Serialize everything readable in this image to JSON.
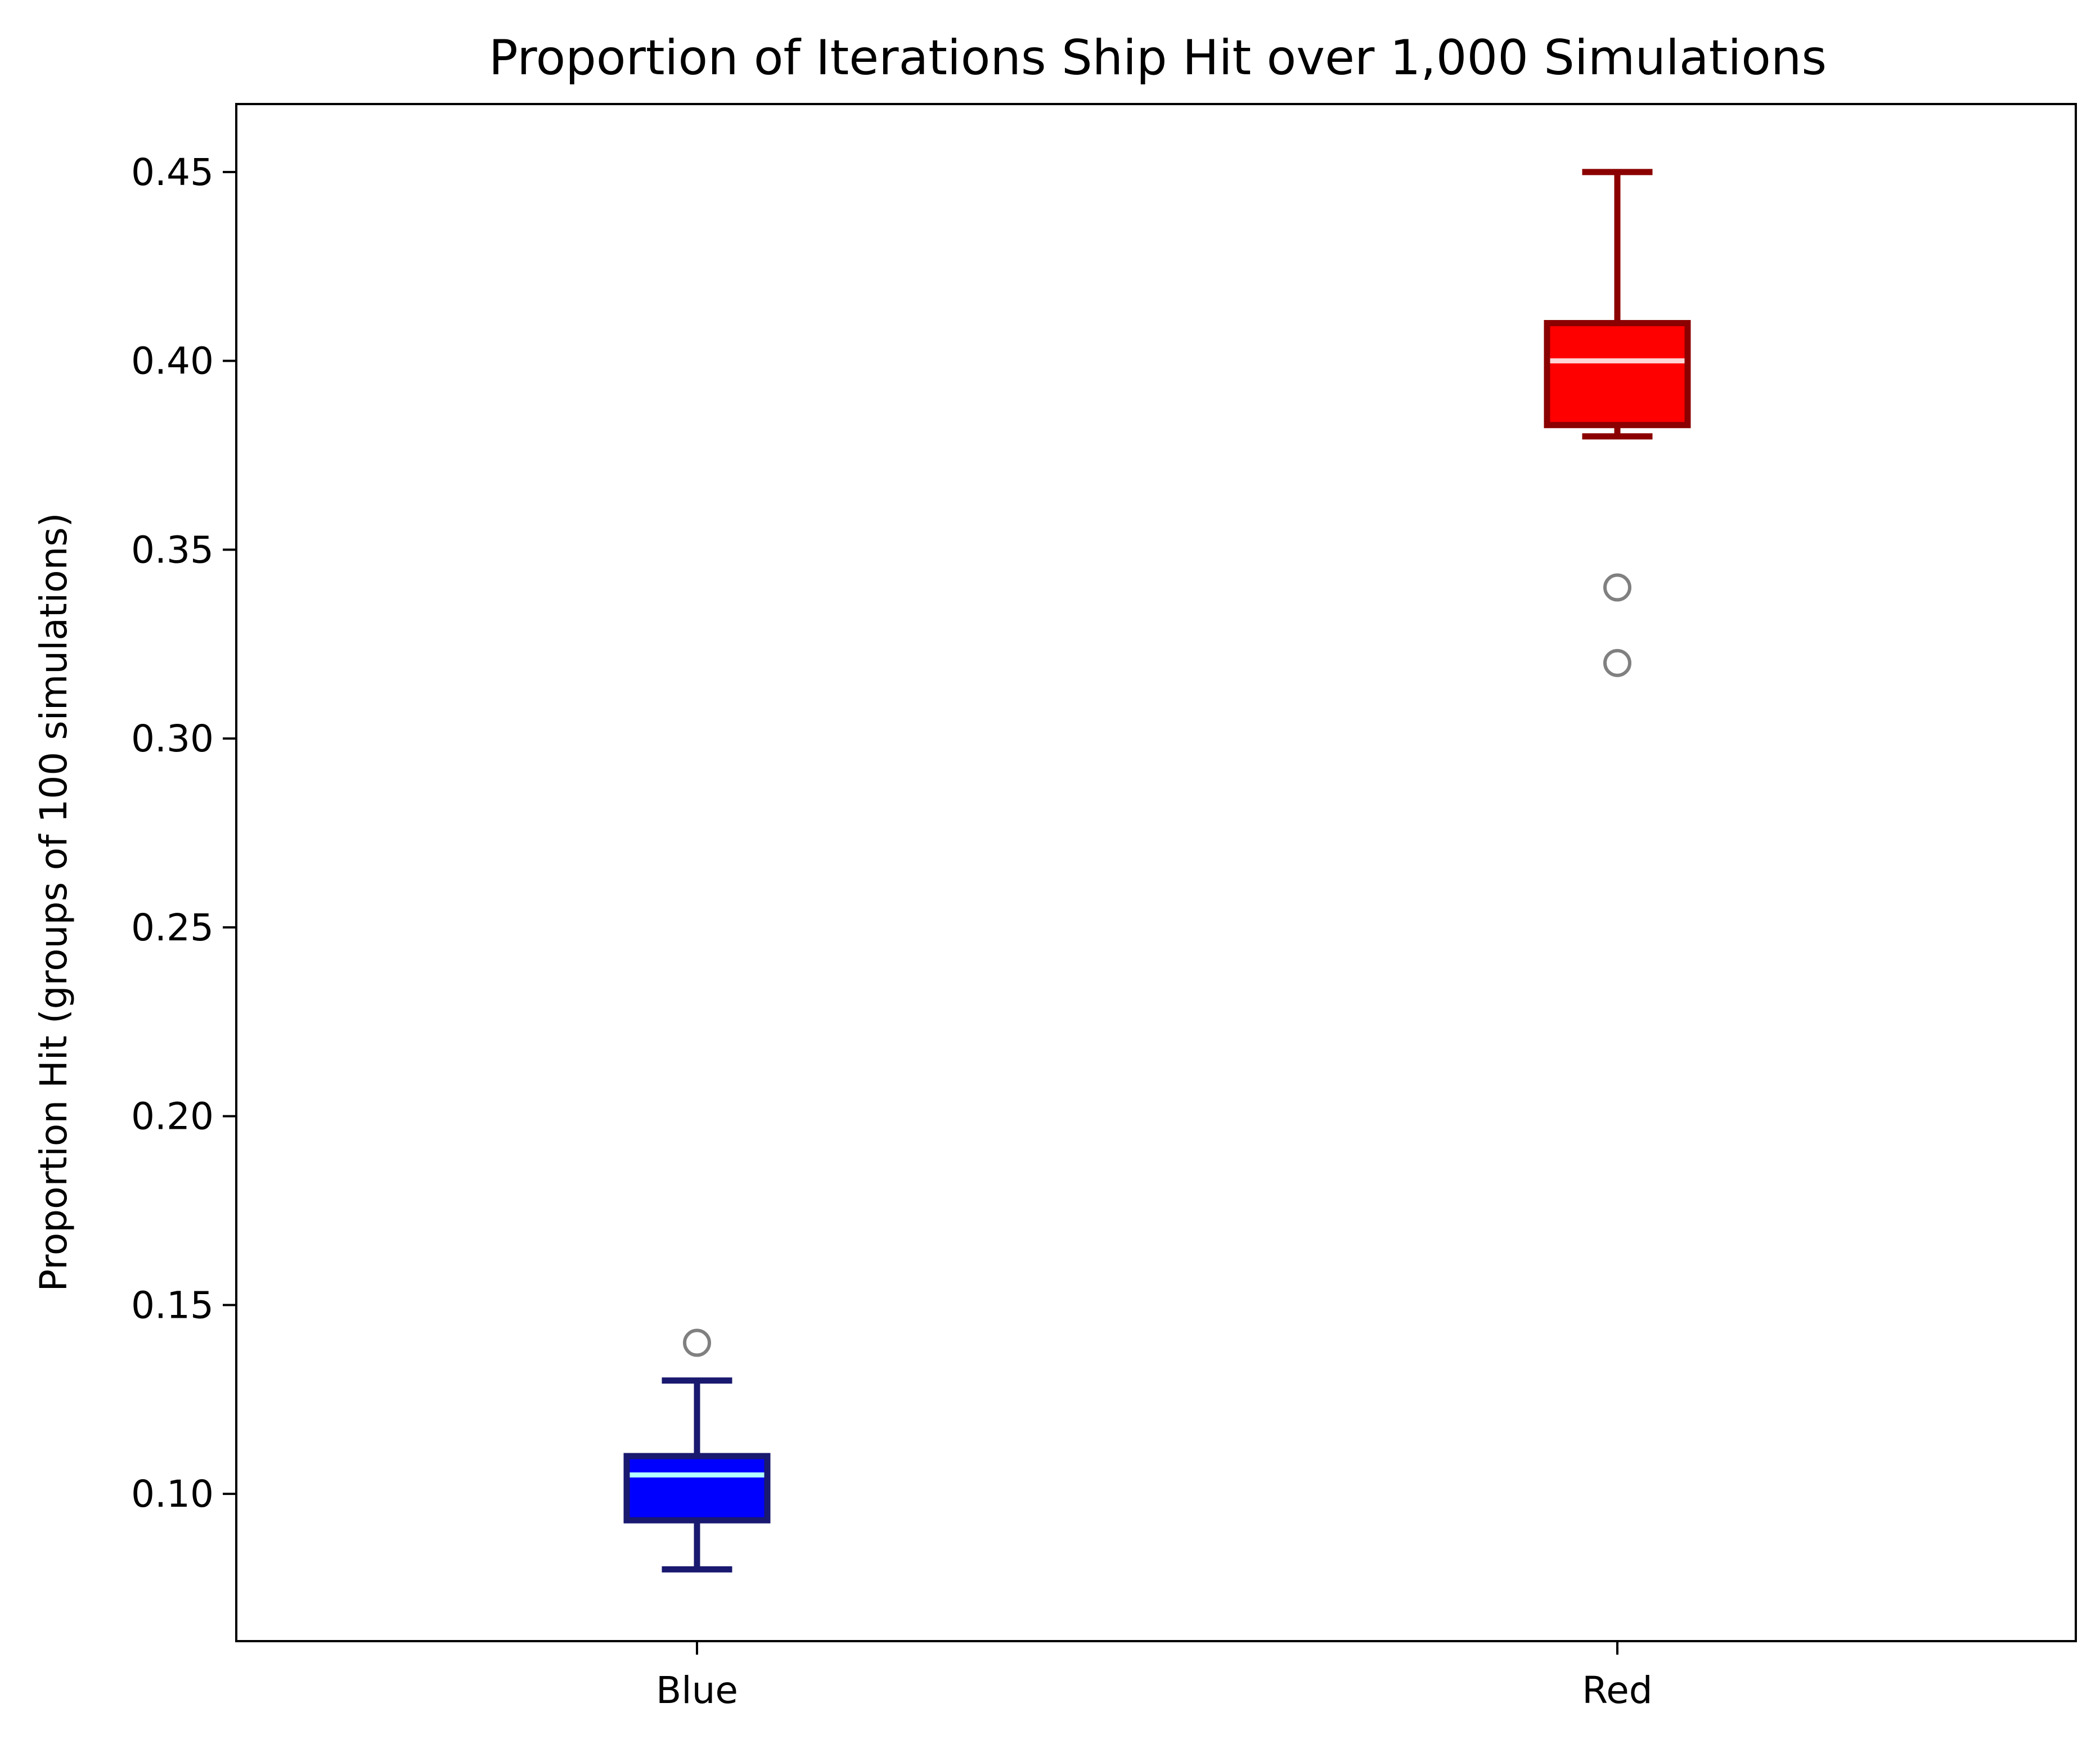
{
  "chart_data": {
    "type": "boxplot",
    "title": "Proportion of Iterations Ship Hit over 1,000 Simulations",
    "xlabel": "",
    "ylabel": "Proportion Hit (groups of 100 simulations)",
    "ylim": [
      0.061,
      0.468
    ],
    "yticks": [
      "0.10",
      "0.15",
      "0.20",
      "0.25",
      "0.30",
      "0.35",
      "0.40",
      "0.45"
    ],
    "grid": false,
    "legend": "none",
    "categories": [
      "Blue",
      "Red"
    ],
    "boxes": [
      {
        "category": "Blue",
        "whisker_low": 0.08,
        "q1": 0.093,
        "median": 0.105,
        "q3": 0.11,
        "whisker_high": 0.13,
        "outliers": [
          0.14
        ],
        "box_color": "#0000ff",
        "edge_color": "#191970",
        "median_color": "#b2ffff"
      },
      {
        "category": "Red",
        "whisker_low": 0.38,
        "q1": 0.383,
        "median": 0.4,
        "q3": 0.41,
        "whisker_high": 0.45,
        "outliers": [
          0.34,
          0.32
        ],
        "box_color": "#ff0000",
        "edge_color": "#8b0000",
        "median_color": "#ffd5d5"
      }
    ],
    "outlier_color": "#808080"
  }
}
